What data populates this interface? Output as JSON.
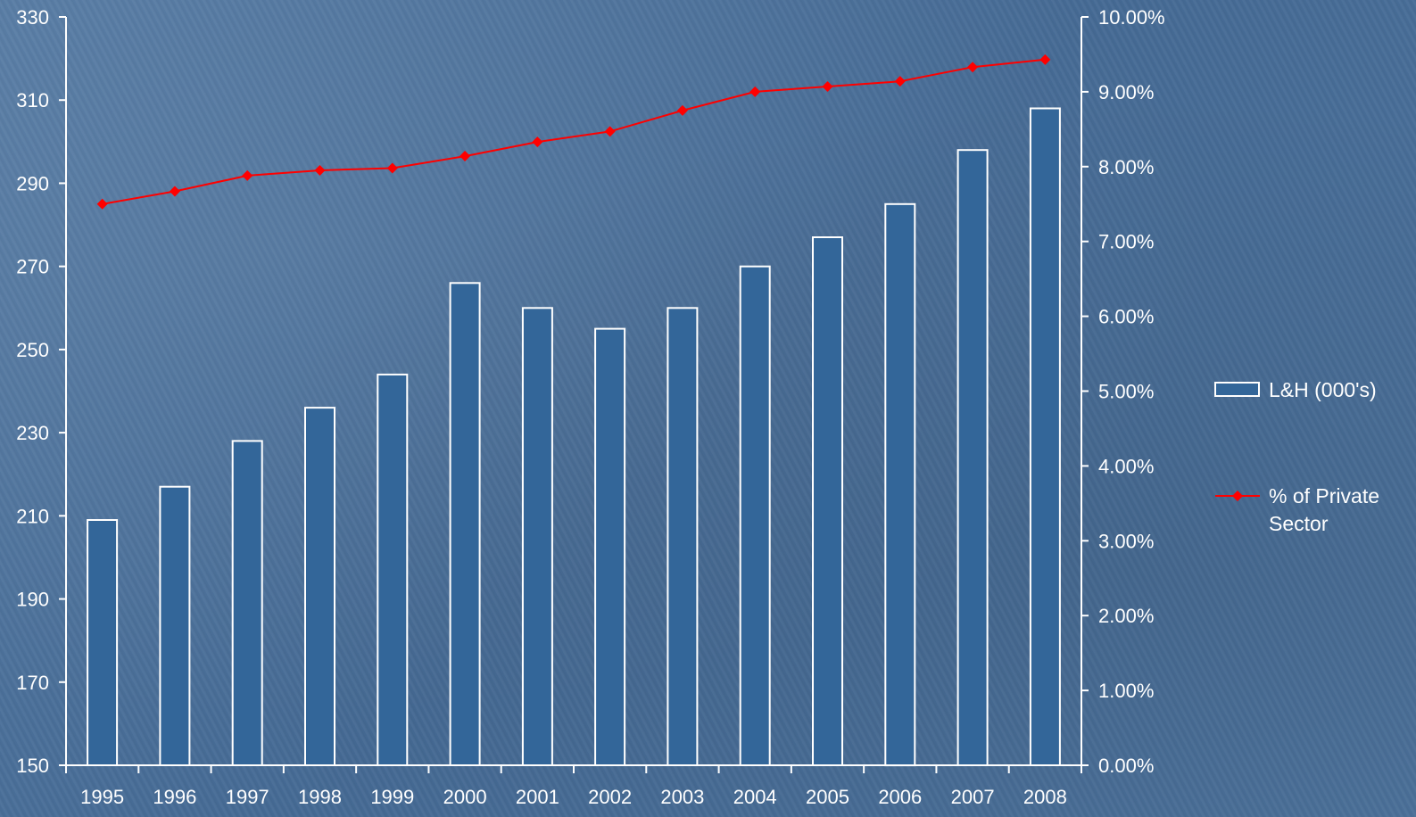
{
  "chart_data": {
    "type": "bar",
    "categories": [
      "1995",
      "1996",
      "1997",
      "1998",
      "1999",
      "2000",
      "2001",
      "2002",
      "2003",
      "2004",
      "2005",
      "2006",
      "2007",
      "2008"
    ],
    "series": [
      {
        "name": "L&H (000's)",
        "kind": "bar",
        "axis": "left",
        "values": [
          209,
          217,
          228,
          236,
          244,
          266,
          260,
          255,
          260,
          270,
          277,
          285,
          298,
          308
        ]
      },
      {
        "name": "% of Private Sector",
        "kind": "line",
        "axis": "right",
        "values": [
          7.5,
          7.67,
          7.88,
          7.95,
          7.98,
          8.14,
          8.33,
          8.47,
          8.75,
          9.0,
          9.07,
          9.14,
          9.33,
          9.43
        ]
      }
    ],
    "y_left": {
      "lim": [
        150,
        330
      ],
      "ticks": [
        "150",
        "170",
        "190",
        "210",
        "230",
        "250",
        "270",
        "290",
        "310",
        "330"
      ]
    },
    "y_right": {
      "lim": [
        0,
        10
      ],
      "ticks": [
        "0.00%",
        "1.00%",
        "2.00%",
        "3.00%",
        "4.00%",
        "5.00%",
        "6.00%",
        "7.00%",
        "8.00%",
        "9.00%",
        "10.00%"
      ]
    },
    "legend": {
      "placement": "right",
      "entries": [
        {
          "lines": [
            "L&H (000's)"
          ]
        },
        {
          "lines": [
            "% of Private",
            "Sector"
          ]
        }
      ]
    },
    "colors": {
      "bar_fill": "#336699",
      "bar_stroke": "#ffffff",
      "line": "#ff0000",
      "axis": "#ffffff"
    },
    "grid": false
  }
}
